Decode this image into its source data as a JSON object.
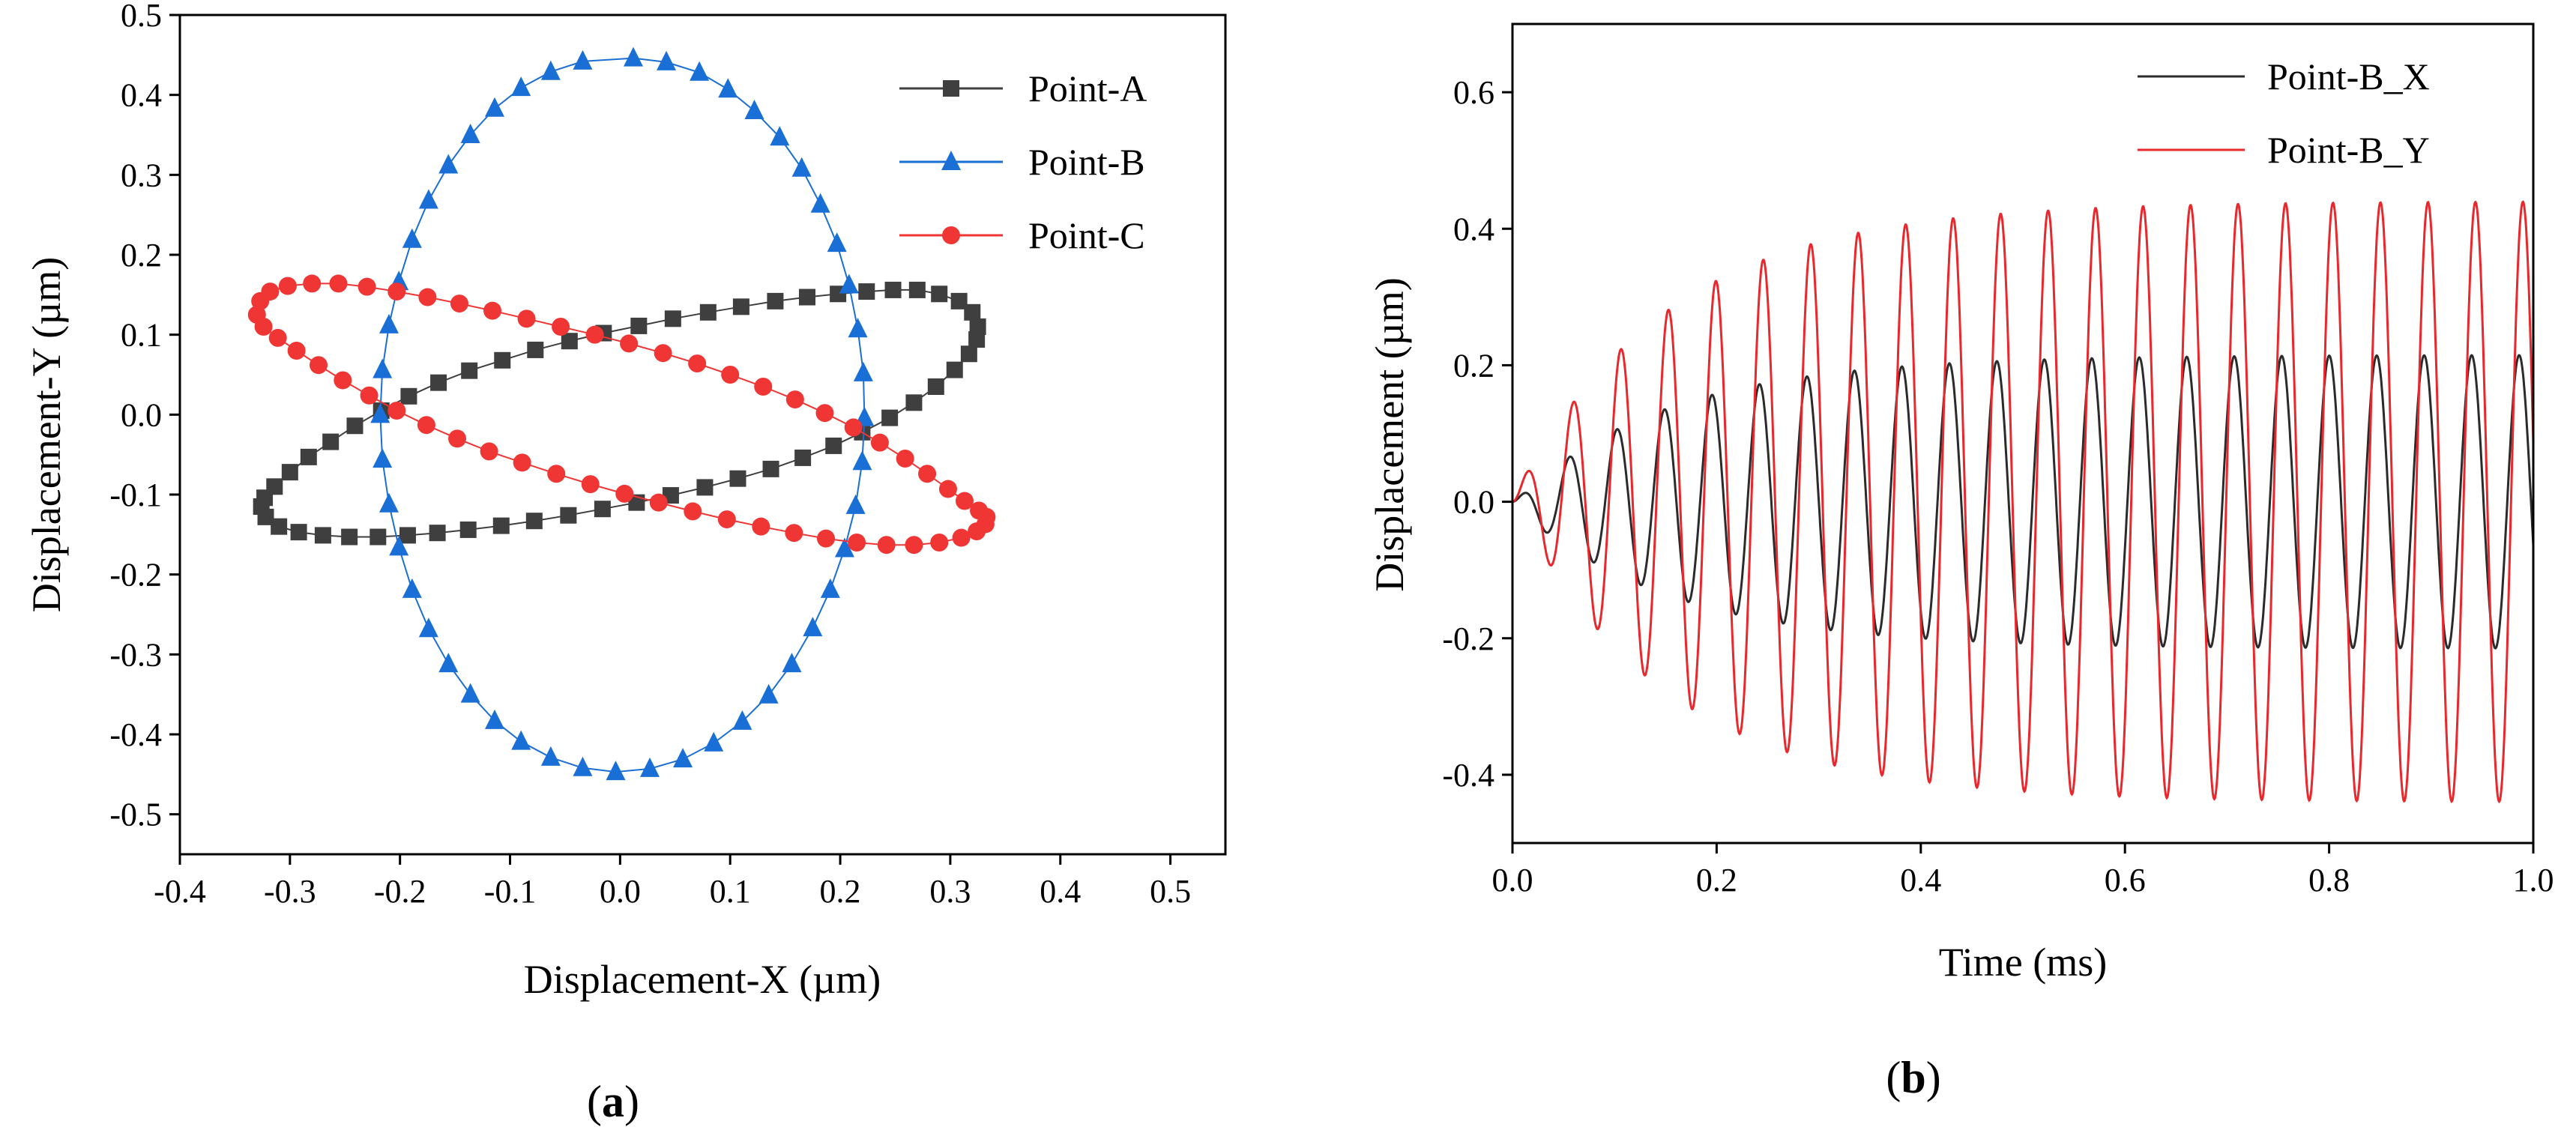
{
  "chart_data": [
    {
      "id": "a",
      "type": "scatter",
      "panel_label": {
        "open": "(",
        "letter": "a",
        "close": ")"
      },
      "xlabel": "Displacement-X (µm)",
      "ylabel": "Displacement-Y (µm)",
      "xlim": [
        -0.4,
        0.55
      ],
      "ylim": [
        -0.55,
        0.5
      ],
      "xticks": [
        -0.4,
        -0.3,
        -0.2,
        -0.1,
        0.0,
        0.1,
        0.2,
        0.3,
        0.4,
        0.5
      ],
      "xtick_labels": [
        "-0.4",
        "-0.3",
        "-0.2",
        "-0.1",
        "0.0",
        "0.1",
        "0.2",
        "0.3",
        "0.4",
        "0.5"
      ],
      "yticks": [
        -0.5,
        -0.4,
        -0.3,
        -0.2,
        -0.1,
        0.0,
        0.1,
        0.2,
        0.3,
        0.4,
        0.5
      ],
      "ytick_labels": [
        "-0.5",
        "-0.4",
        "-0.3",
        "-0.2",
        "-0.1",
        "0.0",
        "0.1",
        "0.2",
        "0.3",
        "0.4",
        "0.5"
      ],
      "grid": false,
      "legend_position": "top-right",
      "series": [
        {
          "name": "Point-A",
          "color": "#3f3f3f",
          "marker": "square",
          "points": [
            [
              0.325,
              0.11
            ],
            [
              0.32,
              0.128
            ],
            [
              0.308,
              0.142
            ],
            [
              0.29,
              0.151
            ],
            [
              0.27,
              0.156
            ],
            [
              0.248,
              0.156
            ],
            [
              0.224,
              0.154
            ],
            [
              0.198,
              0.151
            ],
            [
              0.17,
              0.147
            ],
            [
              0.141,
              0.142
            ],
            [
              0.11,
              0.135
            ],
            [
              0.08,
              0.128
            ],
            [
              0.048,
              0.12
            ],
            [
              0.017,
              0.111
            ],
            [
              -0.015,
              0.102
            ],
            [
              -0.046,
              0.092
            ],
            [
              -0.077,
              0.081
            ],
            [
              -0.107,
              0.068
            ],
            [
              -0.137,
              0.055
            ],
            [
              -0.165,
              0.04
            ],
            [
              -0.192,
              0.023
            ],
            [
              -0.217,
              0.005
            ],
            [
              -0.241,
              -0.014
            ],
            [
              -0.263,
              -0.034
            ],
            [
              -0.283,
              -0.053
            ],
            [
              -0.3,
              -0.072
            ],
            [
              -0.314,
              -0.09
            ],
            [
              -0.323,
              -0.104
            ],
            [
              -0.326,
              -0.115
            ],
            [
              -0.322,
              -0.128
            ],
            [
              -0.31,
              -0.14
            ],
            [
              -0.292,
              -0.147
            ],
            [
              -0.27,
              -0.151
            ],
            [
              -0.246,
              -0.153
            ],
            [
              -0.22,
              -0.153
            ],
            [
              -0.193,
              -0.151
            ],
            [
              -0.166,
              -0.148
            ],
            [
              -0.138,
              -0.144
            ],
            [
              -0.108,
              -0.139
            ],
            [
              -0.078,
              -0.133
            ],
            [
              -0.047,
              -0.126
            ],
            [
              -0.016,
              -0.118
            ],
            [
              0.015,
              -0.11
            ],
            [
              0.046,
              -0.101
            ],
            [
              0.077,
              -0.091
            ],
            [
              0.107,
              -0.08
            ],
            [
              0.137,
              -0.068
            ],
            [
              0.166,
              -0.054
            ],
            [
              0.194,
              -0.039
            ],
            [
              0.22,
              -0.022
            ],
            [
              0.245,
              -0.004
            ],
            [
              0.267,
              0.015
            ],
            [
              0.287,
              0.035
            ],
            [
              0.304,
              0.056
            ],
            [
              0.317,
              0.076
            ],
            [
              0.324,
              0.094
            ]
          ]
        },
        {
          "name": "Point-B",
          "color": "#1a6fd6",
          "marker": "triangle",
          "points": [
            [
              0.012,
              0.446
            ],
            [
              0.042,
              0.441
            ],
            [
              0.072,
              0.428
            ],
            [
              0.098,
              0.407
            ],
            [
              0.122,
              0.38
            ],
            [
              0.145,
              0.347
            ],
            [
              0.165,
              0.308
            ],
            [
              0.182,
              0.263
            ],
            [
              0.197,
              0.214
            ],
            [
              0.208,
              0.162
            ],
            [
              0.216,
              0.107
            ],
            [
              0.221,
              0.052
            ],
            [
              0.222,
              -0.004
            ],
            [
              0.22,
              -0.059
            ],
            [
              0.214,
              -0.114
            ],
            [
              0.204,
              -0.168
            ],
            [
              0.191,
              -0.219
            ],
            [
              0.175,
              -0.267
            ],
            [
              0.156,
              -0.312
            ],
            [
              0.135,
              -0.351
            ],
            [
              0.111,
              -0.384
            ],
            [
              0.085,
              -0.411
            ],
            [
              0.057,
              -0.431
            ],
            [
              0.027,
              -0.443
            ],
            [
              -0.004,
              -0.447
            ],
            [
              -0.034,
              -0.442
            ],
            [
              -0.063,
              -0.429
            ],
            [
              -0.09,
              -0.409
            ],
            [
              -0.114,
              -0.383
            ],
            [
              -0.136,
              -0.35
            ],
            [
              -0.156,
              -0.312
            ],
            [
              -0.174,
              -0.268
            ],
            [
              -0.189,
              -0.219
            ],
            [
              -0.201,
              -0.166
            ],
            [
              -0.21,
              -0.112
            ],
            [
              -0.216,
              -0.056
            ],
            [
              -0.218,
              0.0
            ],
            [
              -0.216,
              0.056
            ],
            [
              -0.21,
              0.112
            ],
            [
              -0.201,
              0.166
            ],
            [
              -0.189,
              0.219
            ],
            [
              -0.174,
              0.268
            ],
            [
              -0.156,
              0.312
            ],
            [
              -0.136,
              0.35
            ],
            [
              -0.114,
              0.383
            ],
            [
              -0.09,
              0.409
            ],
            [
              -0.063,
              0.429
            ],
            [
              -0.034,
              0.442
            ]
          ]
        },
        {
          "name": "Point-C",
          "color": "#f03535",
          "marker": "circle",
          "points": [
            [
              -0.33,
              0.125
            ],
            [
              -0.327,
              0.142
            ],
            [
              -0.318,
              0.154
            ],
            [
              -0.302,
              0.161
            ],
            [
              -0.28,
              0.164
            ],
            [
              -0.256,
              0.164
            ],
            [
              -0.23,
              0.16
            ],
            [
              -0.203,
              0.154
            ],
            [
              -0.175,
              0.147
            ],
            [
              -0.146,
              0.139
            ],
            [
              -0.116,
              0.13
            ],
            [
              -0.085,
              0.12
            ],
            [
              -0.054,
              0.11
            ],
            [
              -0.023,
              0.1
            ],
            [
              0.008,
              0.089
            ],
            [
              0.039,
              0.077
            ],
            [
              0.07,
              0.064
            ],
            [
              0.1,
              0.05
            ],
            [
              0.13,
              0.035
            ],
            [
              0.159,
              0.019
            ],
            [
              0.186,
              0.002
            ],
            [
              0.212,
              -0.016
            ],
            [
              0.236,
              -0.035
            ],
            [
              0.259,
              -0.055
            ],
            [
              0.279,
              -0.074
            ],
            [
              0.298,
              -0.093
            ],
            [
              0.313,
              -0.108
            ],
            [
              0.326,
              -0.12
            ],
            [
              0.333,
              -0.128
            ],
            [
              0.332,
              -0.137
            ],
            [
              0.324,
              -0.146
            ],
            [
              0.31,
              -0.154
            ],
            [
              0.29,
              -0.16
            ],
            [
              0.267,
              -0.163
            ],
            [
              0.242,
              -0.163
            ],
            [
              0.215,
              -0.16
            ],
            [
              0.187,
              -0.155
            ],
            [
              0.158,
              -0.148
            ],
            [
              0.128,
              -0.14
            ],
            [
              0.097,
              -0.131
            ],
            [
              0.066,
              -0.121
            ],
            [
              0.035,
              -0.11
            ],
            [
              0.004,
              -0.099
            ],
            [
              -0.027,
              -0.087
            ],
            [
              -0.058,
              -0.074
            ],
            [
              -0.089,
              -0.06
            ],
            [
              -0.119,
              -0.046
            ],
            [
              -0.148,
              -0.03
            ],
            [
              -0.176,
              -0.013
            ],
            [
              -0.203,
              0.005
            ],
            [
              -0.228,
              0.024
            ],
            [
              -0.252,
              0.043
            ],
            [
              -0.274,
              0.062
            ],
            [
              -0.294,
              0.08
            ],
            [
              -0.311,
              0.096
            ],
            [
              -0.324,
              0.11
            ]
          ]
        }
      ]
    },
    {
      "id": "b",
      "type": "line",
      "panel_label": {
        "open": "(",
        "letter": "b",
        "close": ")"
      },
      "xlabel": "Time (ms)",
      "ylabel": "Displacement (µm)",
      "xlim": [
        0.0,
        1.0
      ],
      "ylim": [
        -0.5,
        0.7
      ],
      "xticks": [
        0.0,
        0.2,
        0.4,
        0.6,
        0.8,
        1.0
      ],
      "xtick_labels": [
        "0.0",
        "0.2",
        "0.4",
        "0.6",
        "0.8",
        "1.0"
      ],
      "yticks": [
        -0.4,
        -0.2,
        0.0,
        0.2,
        0.4,
        0.6
      ],
      "ytick_labels": [
        "-0.4",
        "-0.2",
        "0.0",
        "0.2",
        "0.4",
        "0.6"
      ],
      "grid": false,
      "legend_position": "top-right",
      "signal": {
        "frequency_khz": 21.5,
        "t_max": 1.0,
        "sample_step": 0.0005,
        "time_constant_ms": 0.15
      },
      "series": [
        {
          "name": "Point-B_X",
          "color": "#2b2b2b",
          "amplitude": 0.215,
          "phase": 0.3
        },
        {
          "name": "Point-B_Y",
          "color": "#e8282c",
          "amplitude": 0.44,
          "phase": -0.2
        }
      ]
    }
  ]
}
